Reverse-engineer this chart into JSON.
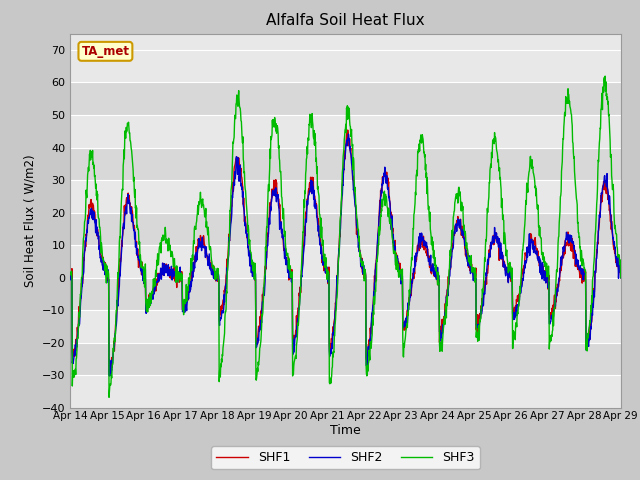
{
  "title": "Alfalfa Soil Heat Flux",
  "ylabel": "Soil Heat Flux ( W/m2)",
  "xlabel": "Time",
  "ylim": [
    -40,
    75
  ],
  "yticks": [
    -40,
    -30,
    -20,
    -10,
    0,
    10,
    20,
    30,
    40,
    50,
    60,
    70
  ],
  "line_colors": {
    "SHF1": "#cc0000",
    "SHF2": "#0000cc",
    "SHF3": "#00bb00"
  },
  "annotation_text": "TA_met",
  "annotation_color": "#aa0000",
  "annotation_bg": "#ffffcc",
  "annotation_border": "#cc9900",
  "band_light": "#e8e8e8",
  "band_dark": "#d8d8d8",
  "grid_color": "#ffffff",
  "fig_bg": "#c8c8c8",
  "xtick_labels": [
    "Apr 14",
    "Apr 15",
    "Apr 16",
    "Apr 17",
    "Apr 18",
    "Apr 19",
    "Apr 20",
    "Apr 21",
    "Apr 22",
    "Apr 23",
    "Apr 24",
    "Apr 25",
    "Apr 26",
    "Apr 27",
    "Apr 28",
    "Apr 29"
  ],
  "n_days": 15,
  "points_per_day": 96
}
